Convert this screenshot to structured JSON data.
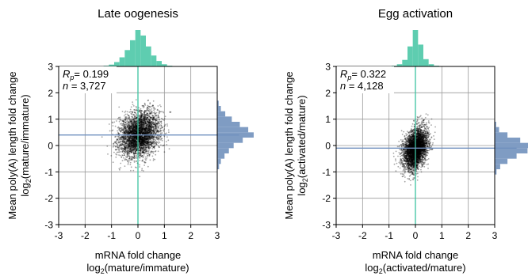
{
  "chart_data": [
    {
      "type": "scatter",
      "title": "Late oogenesis",
      "xlabel_line1": "mRNA fold change",
      "xlabel_line2_prefix": "log",
      "xlabel_line2_sub": "2",
      "xlabel_line2_suffix": "(mature/immature)",
      "ylabel_line1": "Mean poly(A) length fold change",
      "ylabel_line2_prefix": "log",
      "ylabel_line2_sub": "2",
      "ylabel_line2_suffix": "(mature/immature)",
      "xlim": [
        -3,
        3
      ],
      "ylim": [
        -3,
        3
      ],
      "xticks": [
        -3,
        -2,
        -1,
        0,
        1,
        2,
        3
      ],
      "yticks": [
        -3,
        -2,
        -1,
        0,
        1,
        2,
        3
      ],
      "grid": true,
      "stat_r_label": "R",
      "stat_r_sub": "p",
      "stat_r_value": "= 0.199",
      "stat_n_label": "n",
      "stat_n_value": " = 3,727",
      "n_points": 3727,
      "cloud": {
        "x_mean": 0.05,
        "x_sd": 0.38,
        "y_mean": 0.42,
        "y_sd": 0.42,
        "corr": 0.199
      },
      "median_x": 0.0,
      "median_y": 0.4,
      "x_hist": [
        {
          "x": -1.2,
          "density": 0.02
        },
        {
          "x": -1.0,
          "density": 0.05
        },
        {
          "x": -0.8,
          "density": 0.12
        },
        {
          "x": -0.6,
          "density": 0.25
        },
        {
          "x": -0.4,
          "density": 0.45
        },
        {
          "x": -0.2,
          "density": 0.72
        },
        {
          "x": 0.0,
          "density": 1.0
        },
        {
          "x": 0.2,
          "density": 0.85
        },
        {
          "x": 0.4,
          "density": 0.55
        },
        {
          "x": 0.6,
          "density": 0.3
        },
        {
          "x": 0.8,
          "density": 0.15
        },
        {
          "x": 1.0,
          "density": 0.06
        },
        {
          "x": 1.2,
          "density": 0.02
        }
      ],
      "y_hist": [
        {
          "y": -0.8,
          "density": 0.05
        },
        {
          "y": -0.6,
          "density": 0.1
        },
        {
          "y": -0.4,
          "density": 0.2
        },
        {
          "y": -0.2,
          "density": 0.32
        },
        {
          "y": 0.0,
          "density": 0.45
        },
        {
          "y": 0.2,
          "density": 0.7
        },
        {
          "y": 0.4,
          "density": 1.0
        },
        {
          "y": 0.6,
          "density": 0.85
        },
        {
          "y": 0.8,
          "density": 0.62
        },
        {
          "y": 1.0,
          "density": 0.4
        },
        {
          "y": 1.2,
          "density": 0.22
        },
        {
          "y": 1.4,
          "density": 0.1
        },
        {
          "y": 1.6,
          "density": 0.04
        }
      ]
    },
    {
      "type": "scatter",
      "title": "Egg activation",
      "xlabel_line1": "mRNA fold change",
      "xlabel_line2_prefix": "log",
      "xlabel_line2_sub": "2",
      "xlabel_line2_suffix": "(activated/mature)",
      "ylabel_line1": "Mean poly(A) length fold change",
      "ylabel_line2_prefix": "log",
      "ylabel_line2_sub": "2",
      "ylabel_line2_suffix": "(activated/mature)",
      "xlim": [
        -3,
        3
      ],
      "ylim": [
        -3,
        3
      ],
      "xticks": [
        -3,
        -2,
        -1,
        0,
        1,
        2,
        3
      ],
      "yticks": [
        -3,
        -2,
        -1,
        0,
        1,
        2,
        3
      ],
      "grid": true,
      "stat_r_label": "R",
      "stat_r_sub": "p",
      "stat_r_value": "= 0.322",
      "stat_n_label": "n",
      "stat_n_value": " = 4,128",
      "n_points": 4128,
      "cloud": {
        "x_mean": 0.0,
        "x_sd": 0.22,
        "y_mean": -0.12,
        "y_sd": 0.38,
        "corr": 0.322
      },
      "median_x": 0.0,
      "median_y": -0.1,
      "x_hist": [
        {
          "x": -0.8,
          "density": 0.02
        },
        {
          "x": -0.6,
          "density": 0.06
        },
        {
          "x": -0.4,
          "density": 0.18
        },
        {
          "x": -0.2,
          "density": 0.55
        },
        {
          "x": 0.0,
          "density": 1.0
        },
        {
          "x": 0.2,
          "density": 0.6
        },
        {
          "x": 0.4,
          "density": 0.2
        },
        {
          "x": 0.6,
          "density": 0.06
        },
        {
          "x": 0.8,
          "density": 0.02
        }
      ],
      "y_hist": [
        {
          "y": -1.0,
          "density": 0.05
        },
        {
          "y": -0.8,
          "density": 0.15
        },
        {
          "y": -0.6,
          "density": 0.35
        },
        {
          "y": -0.4,
          "density": 0.6
        },
        {
          "y": -0.2,
          "density": 0.9
        },
        {
          "y": 0.0,
          "density": 1.0
        },
        {
          "y": 0.2,
          "density": 0.7
        },
        {
          "y": 0.4,
          "density": 0.35
        },
        {
          "y": 0.6,
          "density": 0.12
        },
        {
          "y": 0.8,
          "density": 0.04
        }
      ]
    }
  ],
  "colors": {
    "x_hist": "#5ecdb0",
    "y_hist": "#7f9cc3",
    "x_median_line": "#3cc3a0",
    "y_median_line": "#6f8fbe",
    "points": "#000000",
    "grid": "#9a9a9a",
    "axis": "#000000"
  }
}
